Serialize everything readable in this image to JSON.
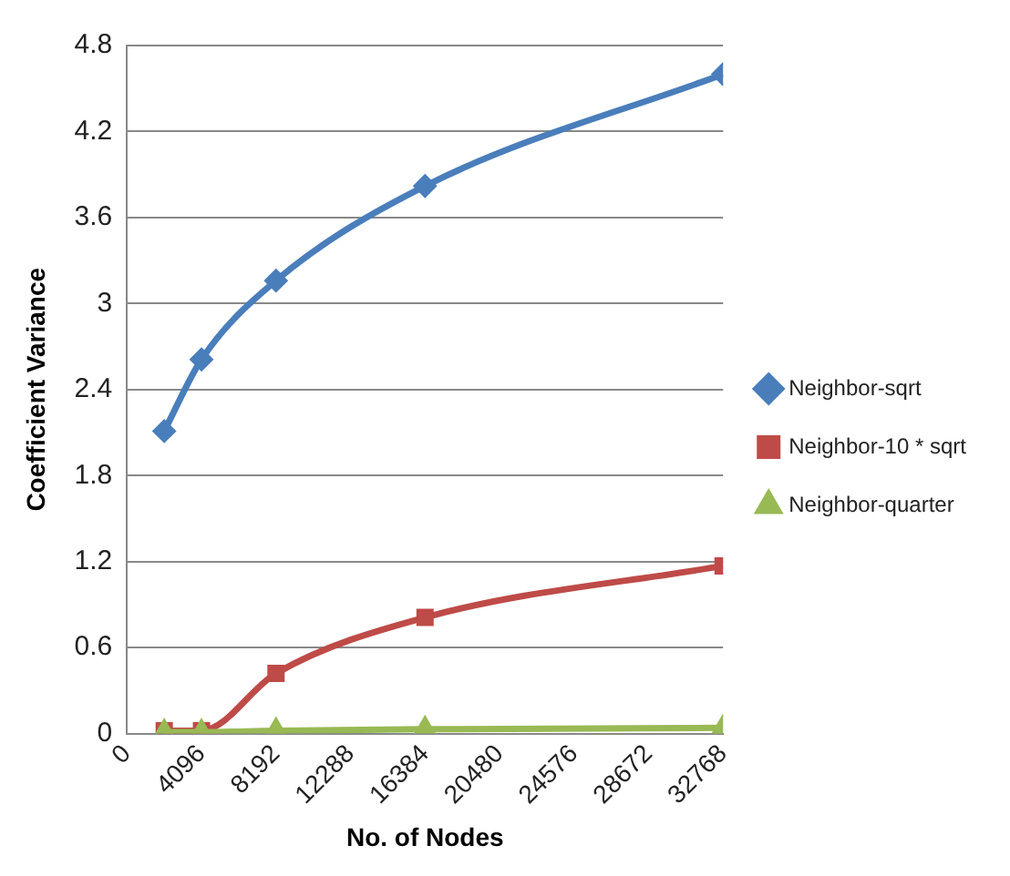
{
  "chart_data": {
    "type": "line",
    "xlabel": "No. of Nodes",
    "ylabel": "Coefficient Variance",
    "x": [
      2048,
      4096,
      8192,
      16384,
      32768
    ],
    "series": [
      {
        "name": "Neighbor-sqrt",
        "color": "#4a7ebb",
        "marker": "diamond",
        "values": [
          2.11,
          2.61,
          3.16,
          3.82,
          4.6
        ]
      },
      {
        "name": "Neighbor-10 * sqrt",
        "color": "#be4b48",
        "marker": "square",
        "values": [
          0.02,
          0.02,
          0.42,
          0.81,
          1.17
        ]
      },
      {
        "name": "Neighbor-quarter",
        "color": "#98b954",
        "marker": "triangle",
        "values": [
          0.01,
          0.01,
          0.02,
          0.03,
          0.04
        ]
      }
    ],
    "xlim": [
      0,
      32768
    ],
    "xticks": [
      0,
      4096,
      8192,
      12288,
      16384,
      20480,
      24576,
      28672,
      32768
    ],
    "ylim": [
      0,
      4.8
    ],
    "yticks": [
      0,
      0.6,
      1.2,
      1.8,
      2.4,
      3,
      3.6,
      4.2,
      4.8
    ],
    "grid": "y",
    "legend": "right"
  }
}
